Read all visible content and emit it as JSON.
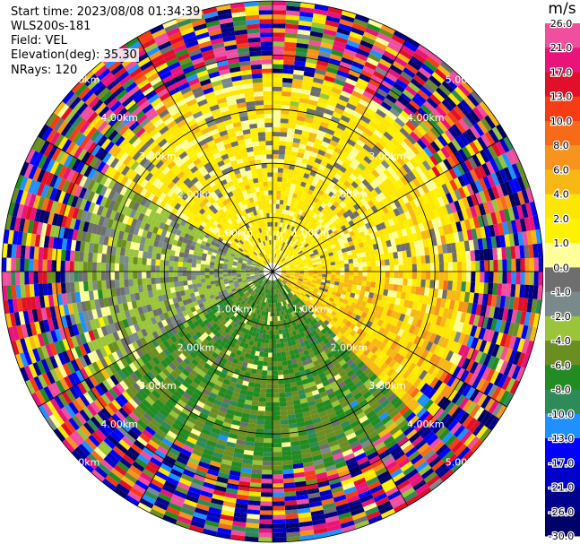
{
  "header": {
    "start_time": "Start time: 2023/08/08 01:34:39",
    "instrument": "WLS200s-181",
    "field": "Field: VEL",
    "elevation": "Elevation(deg): 35.30",
    "nrays": "NRays: 120"
  },
  "colorbar": {
    "unit": "m/s",
    "ticks": [
      "26.0",
      "21.0",
      "17.0",
      "13.0",
      "10.0",
      "8.0",
      "6.0",
      "4.0",
      "2.0",
      "1.0",
      "0.0",
      "-1.0",
      "-2.0",
      "-4.0",
      "-6.0",
      "-8.0",
      "-10.0",
      "-13.0",
      "-17.0",
      "-21.0",
      "-26.0",
      "-30.0"
    ],
    "colors": [
      "#f04fa0",
      "#e8147a",
      "#e0102a",
      "#f53c14",
      "#f76a18",
      "#f7941d",
      "#f8b814",
      "#fde602",
      "#fff200",
      "#ffff9a",
      "#6e6e6e",
      "#7a8a8a",
      "#9ac53a",
      "#6b8e23",
      "#228b22",
      "#2e8b57",
      "#1e90ff",
      "#0000ff",
      "#0000c8",
      "#00008b",
      "#000066",
      "#0a0a3c"
    ]
  },
  "chart_data": {
    "type": "heatmap",
    "projection": "ppi-polar",
    "field": "VEL",
    "units": "m/s",
    "nrays": 120,
    "max_range_km": 5.0,
    "range_rings_km": [
      1.0,
      2.0,
      3.0,
      4.0,
      5.0
    ],
    "range_ring_labels": [
      "1.00km",
      "2.00km",
      "3.00km",
      "4.00km",
      "5.00km"
    ],
    "spokes_deg": [
      0,
      30,
      60,
      90,
      120,
      150,
      180,
      210,
      240,
      270,
      300,
      330
    ],
    "value_range": [
      -30.0,
      26.0
    ],
    "sectors": [
      {
        "azimuth_deg": [
          300,
          90
        ],
        "dominant_velocity_ms": 2.0,
        "description": "positive (yellow/orange)"
      },
      {
        "azimuth_deg": [
          90,
          135
        ],
        "dominant_velocity_ms": 4.0,
        "description": "positive (orange)"
      },
      {
        "azimuth_deg": [
          135,
          240
        ],
        "dominant_velocity_ms": -6.0,
        "description": "negative (green)"
      },
      {
        "azimuth_deg": [
          240,
          300
        ],
        "dominant_velocity_ms": -2.0,
        "description": "negative (light green/grey)"
      }
    ]
  }
}
